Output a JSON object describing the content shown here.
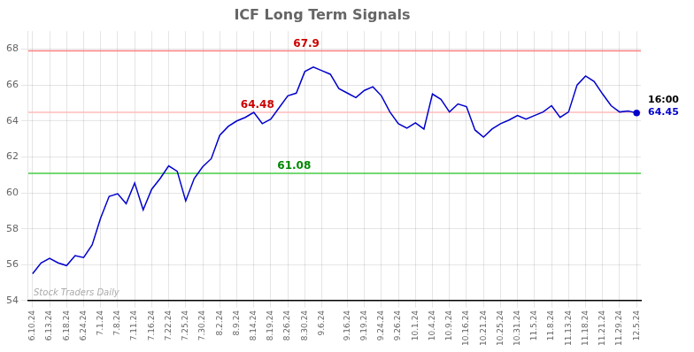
{
  "chart_data": {
    "type": "line",
    "title": "ICF Long Term Signals",
    "categories": [
      "6.10.24",
      null,
      "6.13.24",
      null,
      "6.18.24",
      null,
      "6.24.24",
      null,
      "7.1.24",
      null,
      "7.8.24",
      null,
      "7.11.24",
      null,
      "7.16.24",
      null,
      "7.22.24",
      null,
      "7.25.24",
      null,
      "7.30.24",
      null,
      "8.2.24",
      null,
      "8.9.24",
      null,
      "8.14.24",
      null,
      "8.19.24",
      null,
      "8.26.24",
      null,
      "8.30.24",
      null,
      "9.6.24",
      null,
      null,
      "9.16.24",
      null,
      "9.19.24",
      null,
      "9.24.24",
      null,
      "9.26.24",
      null,
      "10.1.24",
      null,
      "10.4.24",
      null,
      "10.9.24",
      null,
      "10.16.24",
      null,
      "10.21.24",
      null,
      "10.25.24",
      null,
      "10.31.24",
      null,
      "11.5.24",
      null,
      "11.8.24",
      null,
      "11.13.24",
      null,
      "11.18.24",
      null,
      "11.21.24",
      null,
      "11.29.24",
      null,
      "12.5.24"
    ],
    "values": [
      55.5,
      56.1,
      56.35,
      56.1,
      55.95,
      56.5,
      56.4,
      57.1,
      58.6,
      59.8,
      59.95,
      59.4,
      60.55,
      59.05,
      60.2,
      60.8,
      61.5,
      61.2,
      59.55,
      60.8,
      61.45,
      61.9,
      63.2,
      63.7,
      64.0,
      64.2,
      64.48,
      63.85,
      64.1,
      64.75,
      65.4,
      65.55,
      66.75,
      67.0,
      66.8,
      66.6,
      65.8,
      65.55,
      65.3,
      65.7,
      65.9,
      65.4,
      64.5,
      63.85,
      63.6,
      63.9,
      63.55,
      65.5,
      65.2,
      64.5,
      64.95,
      64.8,
      63.5,
      63.1,
      63.55,
      63.85,
      64.05,
      64.3,
      64.1,
      64.3,
      64.5,
      64.85,
      64.2,
      64.5,
      66.0,
      66.5,
      66.2,
      65.5,
      64.85,
      64.5,
      64.55,
      64.45
    ],
    "color": "#0000cc",
    "ylim": [
      54,
      69
    ],
    "yticks": [
      54,
      56,
      58,
      60,
      62,
      64,
      66,
      68
    ],
    "grid": true,
    "hlines": [
      {
        "value": 67.9,
        "label": "67.9",
        "color": "#ff8080",
        "label_color": "#cc0000"
      },
      {
        "value": 64.48,
        "label": "64.48",
        "color": "#ffbbbb",
        "label_color": "#cc0000"
      },
      {
        "value": 61.08,
        "label": "61.08",
        "color": "#44cc44",
        "label_color": "#008800"
      }
    ],
    "watermark": "Stock Traders Daily",
    "last_label": "16:00",
    "last_value": 64.45
  }
}
